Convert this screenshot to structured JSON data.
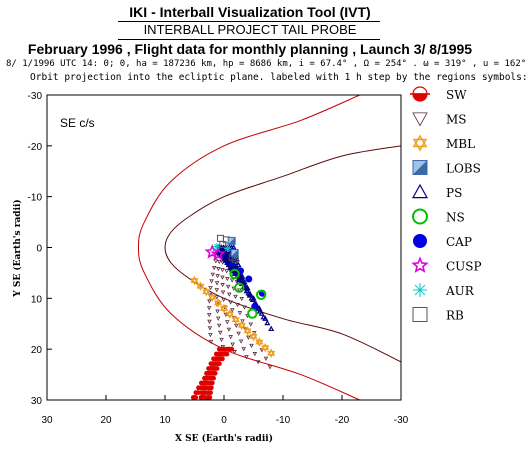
{
  "header": {
    "title": "IKI - Interball Visualization Tool (IVT)",
    "subtitle": "INTERBALL PROJECT TAIL PROBE",
    "mission_line": "February 1996 ,  Flight data for monthly planning ,   Launch  3/ 8/1995",
    "orbit_params": "8/ 1/1996 UTC 14: 0; 0, ha = 187236 km, hp =   8686 km, i = 67.4° , Ω = 254° . ω = 319° , u = 162°",
    "description": "Orbit projection into the ecliptic plane. labeled with 1 h step by the regions symbols:"
  },
  "chart_data": {
    "type": "scatter",
    "frame_label": "SE c/s",
    "xlabel": "X SE (Earth's radii)",
    "ylabel": "Y SE (Earth's radii)",
    "xlim": [
      30,
      -30
    ],
    "ylim": [
      -30,
      30
    ],
    "x_ticks": [
      30,
      20,
      10,
      0,
      -10,
      -20,
      -30
    ],
    "y_ticks": [
      -30,
      -20,
      -10,
      0,
      10,
      20,
      30
    ],
    "legend_position": "right",
    "legend": [
      {
        "label": "SW",
        "symbol": "earth",
        "color": "#e00000"
      },
      {
        "label": "MS",
        "symbol": "triangle-down-open",
        "color": "#5a2a3a"
      },
      {
        "label": "MBL",
        "symbol": "star-of-david",
        "color": "#f0a020"
      },
      {
        "label": "LOBS",
        "symbol": "square-half",
        "color": "#3a6aa8"
      },
      {
        "label": "PS",
        "symbol": "triangle-up-open",
        "color": "#000080"
      },
      {
        "label": "NS",
        "symbol": "circle-open",
        "color": "#00c000"
      },
      {
        "label": "CAP",
        "symbol": "circle-filled",
        "color": "#0000e0"
      },
      {
        "label": "CUSP",
        "symbol": "star-open",
        "color": "#e000e0"
      },
      {
        "label": "AUR",
        "symbol": "asterisk",
        "color": "#00c8c8"
      },
      {
        "label": "RB",
        "symbol": "square-open",
        "color": "#555555"
      }
    ],
    "boundaries": [
      {
        "name": "bow-shock",
        "color": "#c80000",
        "points": [
          [
            -23,
            -30
          ],
          [
            -13,
            -25
          ],
          [
            0,
            -20
          ],
          [
            9,
            -13
          ],
          [
            13.5,
            -5
          ],
          [
            14.5,
            0
          ],
          [
            13.5,
            5
          ],
          [
            9,
            13
          ],
          [
            0,
            20
          ],
          [
            -13,
            25
          ],
          [
            -23,
            30
          ]
        ]
      },
      {
        "name": "magnetopause",
        "color": "#5a0a0a",
        "points": [
          [
            -30,
            -20
          ],
          [
            -20,
            -18
          ],
          [
            -10,
            -14
          ],
          [
            0,
            -10
          ],
          [
            6,
            -6
          ],
          [
            9,
            -3
          ],
          [
            10,
            0
          ],
          [
            9,
            3
          ],
          [
            6,
            6
          ],
          [
            0,
            10
          ],
          [
            -10,
            14
          ],
          [
            -20,
            17
          ],
          [
            -30,
            22.5
          ]
        ]
      }
    ],
    "orbit_tracks": [
      {
        "region": "MS",
        "apogee": [
          [
            2.2,
            18.5
          ],
          [
            0.2,
            19.5
          ],
          [
            -1.8,
            20.5
          ],
          [
            -3.8,
            21.5
          ],
          [
            -5.8,
            22.5
          ],
          [
            -7.8,
            23.5
          ]
        ],
        "start_y": 0
      },
      {
        "region": "PS",
        "apogee": [
          [
            -1,
            2
          ],
          [
            -2,
            4
          ],
          [
            -3,
            6
          ],
          [
            -4,
            8
          ],
          [
            -5,
            10
          ],
          [
            -6,
            12
          ],
          [
            -7,
            14
          ],
          [
            -8,
            16
          ]
        ],
        "start_y": 0
      },
      {
        "region": "SW",
        "apogee": [
          [
            3.9,
            29.5
          ],
          [
            3.6,
            29.5
          ],
          [
            3.3,
            29.5
          ],
          [
            2.8,
            29.5
          ],
          [
            2.4,
            29.5
          ],
          [
            5.2,
            29.5
          ],
          [
            4.8,
            29.5
          ]
        ],
        "start_y": 20
      }
    ],
    "sample_points": [
      {
        "region": "MBL",
        "points": [
          [
            5,
            6.5
          ],
          [
            4,
            7.6
          ],
          [
            3,
            8.7
          ],
          [
            2,
            9.8
          ],
          [
            1,
            10.9
          ],
          [
            0,
            12.0
          ],
          [
            -1,
            13.1
          ],
          [
            -2,
            14.2
          ],
          [
            -3,
            15.3
          ],
          [
            -4,
            16.4
          ],
          [
            -5,
            17.5
          ],
          [
            -6,
            18.6
          ],
          [
            -7,
            19.7
          ],
          [
            -8,
            20.8
          ]
        ]
      },
      {
        "region": "CAP",
        "points": [
          [
            -1.6,
            0.8
          ],
          [
            -1.4,
            2.9
          ],
          [
            -2.8,
            4.6
          ],
          [
            -4.2,
            6.2
          ],
          [
            -6.5,
            9.0
          ],
          [
            -5.2,
            11.6
          ]
        ]
      },
      {
        "region": "NS",
        "points": [
          [
            -6.3,
            9.3
          ],
          [
            -4.8,
            13.0
          ],
          [
            -1.8,
            5.2
          ],
          [
            -2.6,
            7.9
          ]
        ]
      },
      {
        "region": "CUSP",
        "points": [
          [
            2.0,
            0.9
          ],
          [
            1.0,
            1.3
          ]
        ]
      },
      {
        "region": "AUR",
        "points": [
          [
            -0.6,
            0.2
          ],
          [
            -1.8,
            1.5
          ],
          [
            1.2,
            -0.2
          ]
        ]
      },
      {
        "region": "RB",
        "points": [
          [
            0.6,
            -1.8
          ],
          [
            -0.4,
            -1.5
          ],
          [
            0.2,
            -0.6
          ],
          [
            -1.4,
            1.9
          ],
          [
            -1.9,
            2.3
          ]
        ]
      },
      {
        "region": "LOBS",
        "points": [
          [
            -1.3,
            -1.3
          ],
          [
            -1.8,
            1.1
          ]
        ]
      }
    ]
  }
}
